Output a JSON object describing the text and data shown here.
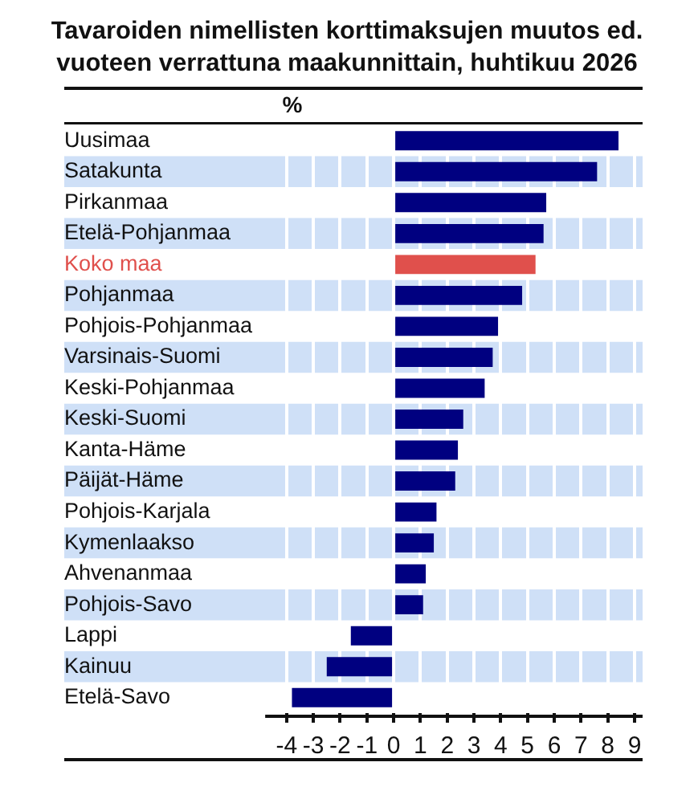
{
  "chart_data": {
    "type": "bar",
    "orientation": "horizontal",
    "title": "Tavaroiden nimellisten korttimaksujen muutos ed. vuoteen verrattuna maakunnittain, huhtikuu 2026",
    "xlabel": "%",
    "categories": [
      "Uusimaa",
      "Satakunta",
      "Pirkanmaa",
      "Etelä-Pohjanmaa",
      "Koko maa",
      "Pohjanmaa",
      "Pohjois-Pohjanmaa",
      "Varsinais-Suomi",
      "Keski-Pohjanmaa",
      "Keski-Suomi",
      "Kanta-Häme",
      "Päijät-Häme",
      "Pohjois-Karjala",
      "Kymenlaakso",
      "Ahvenanmaa",
      "Pohjois-Savo",
      "Lappi",
      "Kainuu",
      "Etelä-Savo"
    ],
    "values": [
      8.4,
      7.6,
      5.7,
      5.6,
      5.3,
      4.8,
      3.9,
      3.7,
      3.4,
      2.6,
      2.4,
      2.3,
      1.6,
      1.5,
      1.2,
      1.1,
      -1.6,
      -2.5,
      -3.8
    ],
    "colors": [
      "#000080",
      "#000080",
      "#000080",
      "#000080",
      "#e0504c",
      "#000080",
      "#000080",
      "#000080",
      "#000080",
      "#000080",
      "#000080",
      "#000080",
      "#000080",
      "#000080",
      "#000080",
      "#000080",
      "#000080",
      "#000080",
      "#000080"
    ],
    "xlim": [
      -4.8,
      9.3
    ],
    "xticks": [
      -4,
      -3,
      -2,
      -1,
      0,
      1,
      2,
      3,
      4,
      5,
      6,
      7,
      8,
      9
    ],
    "grid": "x",
    "legend": false
  }
}
